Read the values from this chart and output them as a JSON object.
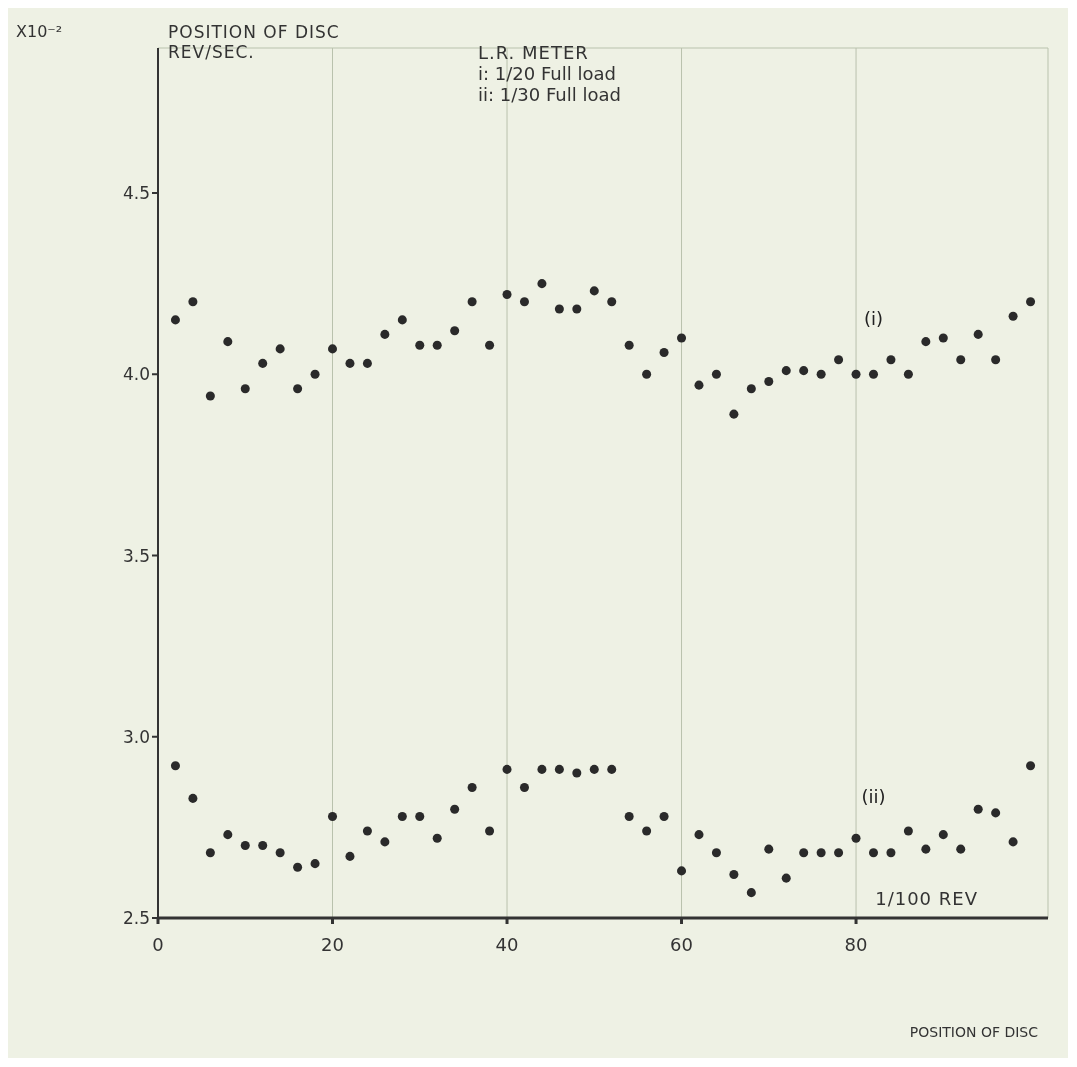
{
  "chart_data": {
    "type": "scatter",
    "title": "L.R. METER",
    "ylabel": "POSITION OF DISC REV/SEC.",
    "xlabel": "1/100 REV",
    "annotations": [
      "X10⁻²",
      "i: 1/20 Full load",
      "ii: 1/30 Full load",
      "POSITION OF DISC"
    ],
    "x": [
      2,
      4,
      6,
      8,
      10,
      12,
      14,
      16,
      18,
      20,
      22,
      24,
      26,
      28,
      30,
      32,
      34,
      36,
      38,
      40,
      42,
      44,
      46,
      48,
      50,
      52,
      54,
      56,
      58,
      60,
      62,
      64,
      66,
      68,
      70,
      72,
      74,
      76,
      78,
      80,
      82,
      84,
      86,
      88,
      90,
      92,
      94,
      96,
      98,
      100
    ],
    "series": [
      {
        "name": "(i)",
        "color": "#2a2a2a",
        "values": [
          4.15,
          4.2,
          3.94,
          4.09,
          3.96,
          4.03,
          4.07,
          3.96,
          4.0,
          4.07,
          4.03,
          4.03,
          4.11,
          4.15,
          4.08,
          4.08,
          4.12,
          4.2,
          4.08,
          4.22,
          4.2,
          4.25,
          4.18,
          4.18,
          4.23,
          4.2,
          4.08,
          4.0,
          4.06,
          4.1,
          3.97,
          4.0,
          3.89,
          3.96,
          3.98,
          4.01,
          4.01,
          4.0,
          4.04,
          4.0,
          4.0,
          4.04,
          4.0,
          4.09,
          4.1,
          4.04,
          4.11,
          4.04,
          4.16,
          4.2
        ]
      },
      {
        "name": "(ii)",
        "color": "#2a2a2a",
        "values": [
          2.92,
          2.83,
          2.68,
          2.73,
          2.7,
          2.7,
          2.68,
          2.64,
          2.65,
          2.78,
          2.67,
          2.74,
          2.71,
          2.78,
          2.78,
          2.72,
          2.8,
          2.86,
          2.74,
          2.91,
          2.86,
          2.91,
          2.91,
          2.9,
          2.91,
          2.91,
          2.78,
          2.74,
          2.78,
          2.63,
          2.73,
          2.68,
          2.62,
          2.57,
          2.69,
          2.61,
          2.68,
          2.68,
          2.68,
          2.72,
          2.68,
          2.68,
          2.74,
          2.69,
          2.73,
          2.69,
          2.8,
          2.79,
          2.71,
          2.92
        ]
      }
    ],
    "xlim": [
      0,
      102
    ],
    "xticks": [
      0,
      20,
      40,
      60,
      80
    ],
    "ylim": [
      2.5,
      4.9
    ],
    "yticks": [
      2.5,
      {
        "value": 3.0,
        "label": "3.0"
      },
      3.5,
      {
        "value": 4.0,
        "label": "4.0"
      },
      4.5
    ],
    "grid": true,
    "marker": "circle"
  }
}
